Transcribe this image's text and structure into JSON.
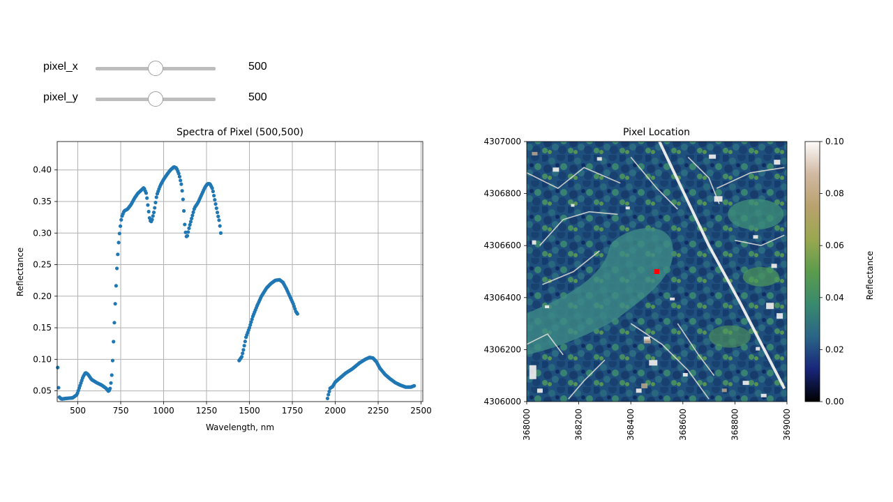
{
  "controls": {
    "pixel_x": {
      "label": "pixel_x",
      "value": "500",
      "fraction": 0.5
    },
    "pixel_y": {
      "label": "pixel_y",
      "value": "500",
      "fraction": 0.5
    }
  },
  "colors": {
    "series": "#1f77b4",
    "marker": "#ff0000",
    "grid": "#b0b0b0",
    "colormap_gist_earth": [
      "#000000",
      "#18267a",
      "#2a6587",
      "#398a6e",
      "#5b9c4c",
      "#9aa750",
      "#b9a26d",
      "#d1b9a3",
      "#fdfbfb"
    ]
  },
  "chart_data": [
    {
      "type": "scatter",
      "title": "Spectra of Pixel (500,500)",
      "xlabel": "Wavelength, nm",
      "ylabel": "Reflectance",
      "xlim": [
        380,
        2510
      ],
      "ylim": [
        0.033,
        0.445
      ],
      "xticks": [
        500,
        750,
        1000,
        1250,
        1500,
        1750,
        2000,
        2250,
        2500
      ],
      "yticks": [
        0.05,
        0.1,
        0.15,
        0.2,
        0.25,
        0.3,
        0.35,
        0.4
      ],
      "grid": true,
      "segments": [
        {
          "from": 383,
          "to": 1333,
          "step": 5,
          "curve": [
            [
              383,
              0.087
            ],
            [
              388,
              0.055
            ],
            [
              393,
              0.04
            ],
            [
              405,
              0.037
            ],
            [
              430,
              0.038
            ],
            [
              470,
              0.039
            ],
            [
              495,
              0.044
            ],
            [
              515,
              0.06
            ],
            [
              530,
              0.072
            ],
            [
              545,
              0.079
            ],
            [
              560,
              0.076
            ],
            [
              580,
              0.068
            ],
            [
              610,
              0.063
            ],
            [
              640,
              0.059
            ],
            [
              665,
              0.054
            ],
            [
              680,
              0.049
            ],
            [
              690,
              0.055
            ],
            [
              700,
              0.08
            ],
            [
              710,
              0.14
            ],
            [
              720,
              0.2
            ],
            [
              730,
              0.255
            ],
            [
              738,
              0.285
            ],
            [
              745,
              0.305
            ],
            [
              755,
              0.325
            ],
            [
              770,
              0.335
            ],
            [
              790,
              0.338
            ],
            [
              810,
              0.345
            ],
            [
              830,
              0.355
            ],
            [
              850,
              0.363
            ],
            [
              870,
              0.368
            ],
            [
              885,
              0.372
            ],
            [
              900,
              0.362
            ],
            [
              910,
              0.34
            ],
            [
              920,
              0.32
            ],
            [
              930,
              0.318
            ],
            [
              945,
              0.335
            ],
            [
              960,
              0.36
            ],
            [
              980,
              0.375
            ],
            [
              1000,
              0.385
            ],
            [
              1020,
              0.393
            ],
            [
              1040,
              0.4
            ],
            [
              1060,
              0.405
            ],
            [
              1075,
              0.403
            ],
            [
              1090,
              0.393
            ],
            [
              1105,
              0.375
            ],
            [
              1115,
              0.348
            ],
            [
              1125,
              0.305
            ],
            [
              1135,
              0.292
            ],
            [
              1150,
              0.31
            ],
            [
              1165,
              0.325
            ],
            [
              1180,
              0.34
            ],
            [
              1200,
              0.348
            ],
            [
              1220,
              0.36
            ],
            [
              1240,
              0.372
            ],
            [
              1255,
              0.378
            ],
            [
              1270,
              0.378
            ],
            [
              1285,
              0.37
            ],
            [
              1300,
              0.35
            ],
            [
              1315,
              0.33
            ],
            [
              1325,
              0.318
            ],
            [
              1333,
              0.3
            ]
          ]
        },
        {
          "from": 1440,
          "to": 1780,
          "step": 5,
          "curve": [
            [
              1440,
              0.098
            ],
            [
              1455,
              0.104
            ],
            [
              1465,
              0.115
            ],
            [
              1480,
              0.135
            ],
            [
              1500,
              0.15
            ],
            [
              1520,
              0.168
            ],
            [
              1545,
              0.185
            ],
            [
              1570,
              0.2
            ],
            [
              1600,
              0.213
            ],
            [
              1625,
              0.22
            ],
            [
              1650,
              0.225
            ],
            [
              1675,
              0.226
            ],
            [
              1695,
              0.222
            ],
            [
              1715,
              0.212
            ],
            [
              1735,
              0.2
            ],
            [
              1755,
              0.188
            ],
            [
              1770,
              0.176
            ],
            [
              1780,
              0.172
            ]
          ]
        },
        {
          "from": 1950,
          "to": 2460,
          "step": 5,
          "curve": [
            [
              1950,
              0.032
            ],
            [
              1960,
              0.044
            ],
            [
              1970,
              0.054
            ],
            [
              1985,
              0.057
            ],
            [
              2000,
              0.064
            ],
            [
              2030,
              0.071
            ],
            [
              2060,
              0.078
            ],
            [
              2100,
              0.085
            ],
            [
              2140,
              0.094
            ],
            [
              2175,
              0.1
            ],
            [
              2200,
              0.103
            ],
            [
              2220,
              0.102
            ],
            [
              2240,
              0.096
            ],
            [
              2260,
              0.086
            ],
            [
              2290,
              0.076
            ],
            [
              2320,
              0.069
            ],
            [
              2350,
              0.063
            ],
            [
              2380,
              0.059
            ],
            [
              2410,
              0.056
            ],
            [
              2440,
              0.056
            ],
            [
              2460,
              0.058
            ]
          ]
        }
      ]
    },
    {
      "type": "heatmap",
      "title": "Pixel Location",
      "xlim": [
        368000,
        369000
      ],
      "ylim": [
        4306000,
        4307000
      ],
      "xticks": [
        "368000",
        "368200",
        "368400",
        "368600",
        "368800",
        "369000"
      ],
      "yticks": [
        "4306000",
        "4306200",
        "4306400",
        "4306600",
        "4306800",
        "4307000"
      ],
      "marker": {
        "x": 368500,
        "y": 4306500
      },
      "colorbar": {
        "label": "Reflectance",
        "range": [
          0.0,
          0.1
        ],
        "ticks": [
          "0.00",
          "0.02",
          "0.04",
          "0.06",
          "0.08",
          "0.10"
        ]
      }
    }
  ]
}
